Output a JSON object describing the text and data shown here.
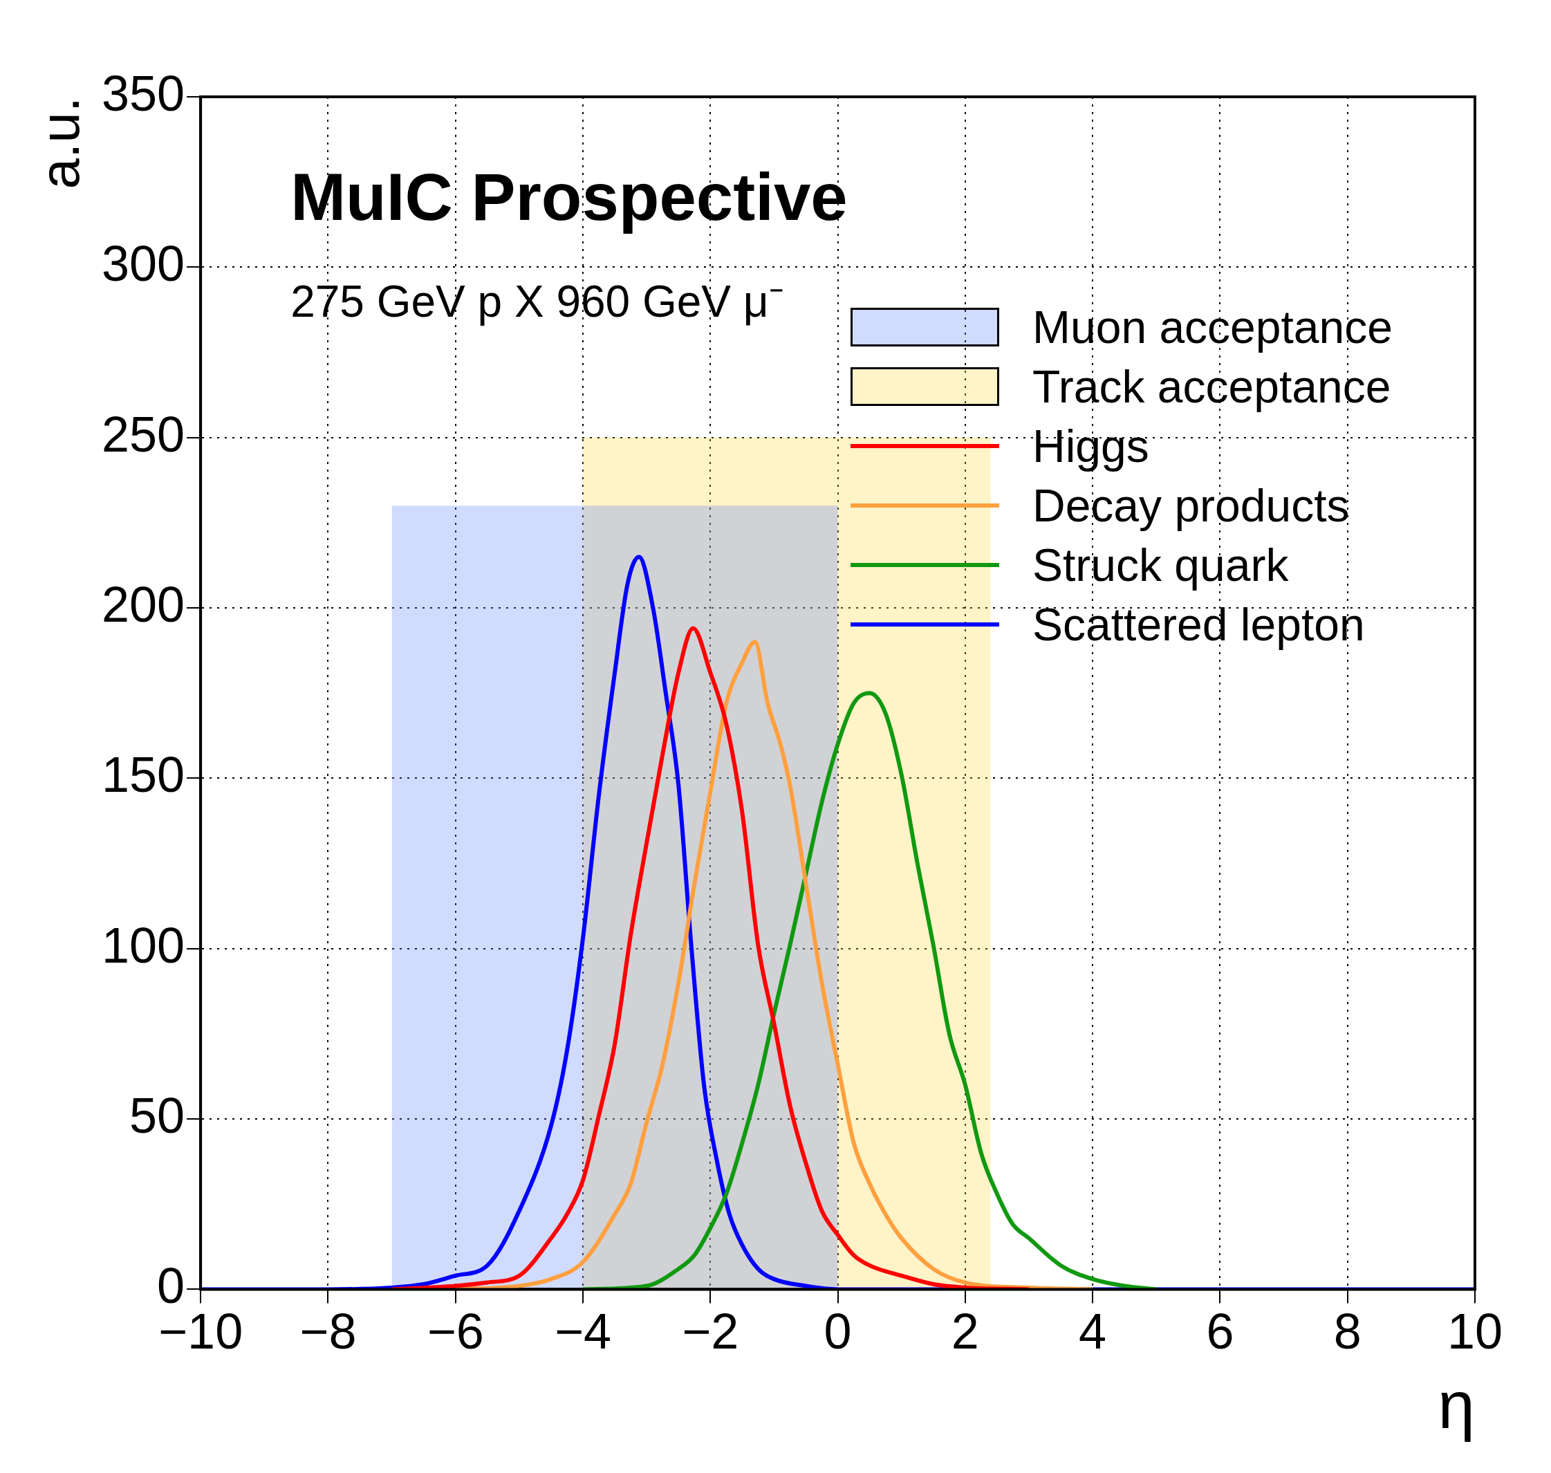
{
  "chart_data": {
    "type": "line",
    "xlabel": "η",
    "ylabel": "a.u.",
    "annotations": [
      "MuIC  Prospective",
      "275 GeV p X 960 GeV μ⁻"
    ],
    "xlim": [
      -10,
      10
    ],
    "xticks": [
      -10,
      -8,
      -6,
      -4,
      -2,
      0,
      2,
      4,
      6,
      8,
      10
    ],
    "ylim": [
      0,
      350
    ],
    "yticks": [
      0,
      50,
      100,
      150,
      200,
      250,
      300,
      350
    ],
    "grid": true,
    "legend": "top right",
    "marker": "none",
    "line_style": "solid",
    "series": [
      {
        "name": "Muon acceptance",
        "type": "area",
        "color": "#5b7cfa",
        "x": [
          -7,
          0
        ],
        "values": [
          230,
          230
        ]
      },
      {
        "name": "Track acceptance",
        "type": "area",
        "color": "#ffd43b",
        "x": [
          -4,
          2.4
        ],
        "values": [
          250,
          250
        ]
      },
      {
        "name": "Higgs",
        "color": "#ff0000",
        "x": [
          -7,
          -6,
          -5.5,
          -5,
          -4.5,
          -4.25,
          -4,
          -3.75,
          -3.5,
          -3.25,
          -3,
          -2.75,
          -2.5,
          -2.27,
          -2,
          -1.75,
          -1.5,
          -1.25,
          -1,
          -0.75,
          -0.5,
          -0.25,
          0,
          0.25,
          0.5,
          1,
          1.5,
          2,
          3
        ],
        "values": [
          0,
          1,
          2,
          4,
          15,
          22,
          32,
          51,
          72,
          104,
          131,
          157,
          181,
          194,
          181,
          166,
          140,
          101,
          78,
          54,
          37,
          23,
          16,
          10,
          7,
          4,
          1.5,
          0.5,
          0
        ]
      },
      {
        "name": "Decay products",
        "color": "#ffa040",
        "x": [
          -6,
          -5,
          -4.5,
          -4,
          -3.5,
          -3.25,
          -3,
          -2.75,
          -2.5,
          -2.25,
          -2,
          -1.75,
          -1.5,
          -1.3,
          -1.1,
          -0.9,
          -0.75,
          -0.5,
          -0.25,
          0,
          0.25,
          0.5,
          0.75,
          1,
          1.5,
          2,
          3,
          4
        ],
        "values": [
          0,
          1,
          3,
          8,
          22,
          31,
          49,
          66,
          90,
          119,
          146,
          172,
          184,
          190,
          172,
          160,
          148,
          119,
          90,
          66,
          43,
          31,
          22,
          15,
          6,
          2,
          0.5,
          0
        ]
      },
      {
        "name": "Struck quark",
        "color": "#119911",
        "x": [
          -4,
          -3,
          -2.5,
          -2.25,
          -2,
          -1.75,
          -1.5,
          -1.25,
          -1,
          -0.75,
          -0.5,
          -0.25,
          0,
          0.25,
          0.5,
          0.75,
          1,
          1.25,
          1.5,
          1.75,
          2,
          2.25,
          2.5,
          2.75,
          3,
          3.5,
          4,
          4.5,
          5
        ],
        "values": [
          0,
          1,
          6,
          10,
          18,
          28,
          43,
          60,
          81,
          101,
          122,
          143,
          160,
          172,
          175,
          169,
          151,
          125,
          101,
          75,
          60,
          40,
          28,
          19,
          15,
          7,
          3,
          1,
          0
        ]
      },
      {
        "name": "Scattered lepton",
        "color": "#0000ff",
        "x": [
          -10,
          -8,
          -7,
          -6.5,
          -6,
          -5.5,
          -5,
          -4.5,
          -4.25,
          -4,
          -3.75,
          -3.5,
          -3.3,
          -3.12,
          -2.9,
          -2.7,
          -2.5,
          -2.3,
          -2.1,
          -1.9,
          -1.7,
          -1.5,
          -1.25,
          -1,
          -0.5,
          0,
          10
        ],
        "values": [
          0,
          0,
          0.5,
          1.5,
          4,
          7,
          23,
          48,
          70,
          103,
          145,
          181,
          207,
          215,
          200,
          175,
          148,
          101,
          60,
          38,
          22,
          13,
          6,
          3,
          1,
          0,
          0
        ]
      }
    ]
  }
}
